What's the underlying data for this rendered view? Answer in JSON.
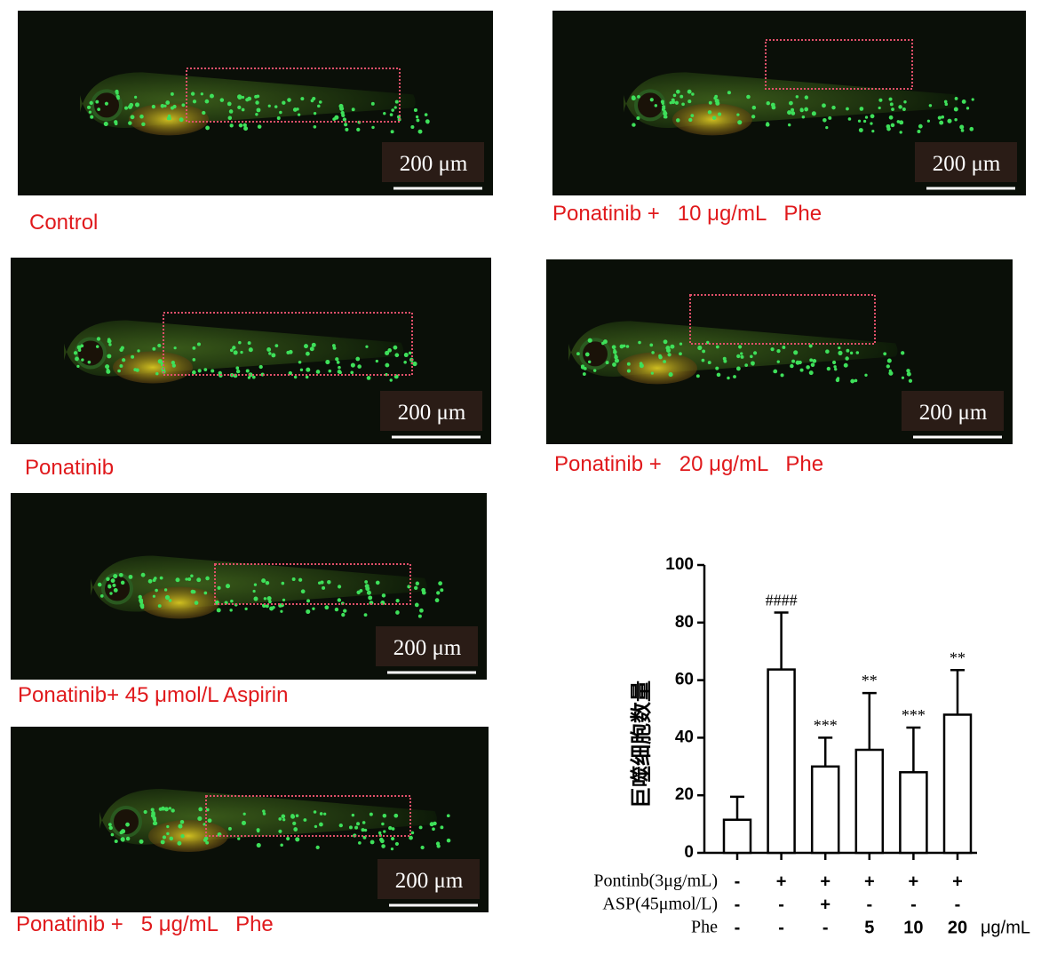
{
  "panels": [
    {
      "caption": "Control",
      "scale": "200 μm"
    },
    {
      "caption": "Ponatinib +   10 μg/mL   Phe",
      "scale": "200 μm"
    },
    {
      "caption": "Ponatinib",
      "scale": "200 μm"
    },
    {
      "caption": "Ponatinib +   20 μg/mL   Phe",
      "scale": "200 μm"
    },
    {
      "caption": "Ponatinib+ 45 μmol/L Aspirin",
      "scale": "200 μm"
    },
    {
      "caption": "Ponatinib +   5 μg/mL   Phe",
      "scale": "200 μm"
    }
  ],
  "chart_data": {
    "type": "bar",
    "y_label": "巨噬细胞数量",
    "values": [
      11.5,
      63.7,
      30,
      35.8,
      28,
      48
    ],
    "errors": [
      8,
      19.8,
      10,
      19.7,
      15.5,
      15.5
    ],
    "annotations": [
      null,
      "####",
      "***",
      "**",
      "***",
      "**"
    ],
    "color": "#000000",
    "ylim": [
      0,
      100
    ],
    "yticks": [
      0,
      20,
      40,
      60,
      80,
      100
    ],
    "rows": [
      {
        "label": "Pontinb(3μg/mL)",
        "cells": [
          "-",
          "+",
          "+",
          "+",
          "+",
          "+"
        ]
      },
      {
        "label": "ASP(45μmol/L)",
        "cells": [
          "-",
          "-",
          "+",
          "-",
          "-",
          "-"
        ]
      },
      {
        "label": "Phe",
        "cells": [
          "-",
          "-",
          "-",
          "5",
          "10",
          "20"
        ],
        "unit": "μg/mL"
      }
    ]
  }
}
